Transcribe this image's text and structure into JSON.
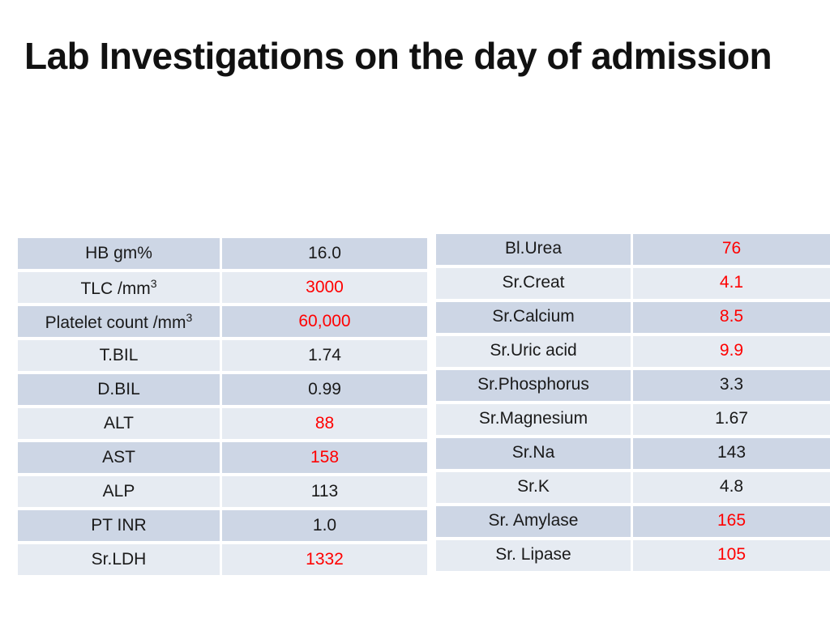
{
  "title": "Lab Investigations on the day of admission",
  "colors": {
    "abnormal": "#ff0000",
    "normal": "#1a1a1a",
    "row_dark": "#cdd6e5",
    "row_light": "#e6ebf2"
  },
  "left_table": [
    {
      "name": "HB  gm%",
      "value": "16.0",
      "abnormal": false
    },
    {
      "name": "TLC   /mm",
      "sup": "3",
      "value": "3000",
      "abnormal": true
    },
    {
      "name": "Platelet count  /mm",
      "sup": "3",
      "value": "60,000",
      "abnormal": true
    },
    {
      "name": "T.BIL",
      "value": "1.74",
      "abnormal": false
    },
    {
      "name": "D.BIL",
      "value": "0.99",
      "abnormal": false
    },
    {
      "name": "ALT",
      "value": "88",
      "abnormal": true
    },
    {
      "name": "AST",
      "value": "158",
      "abnormal": true
    },
    {
      "name": "ALP",
      "value": "113",
      "abnormal": false
    },
    {
      "name": "PT INR",
      "value": "1.0",
      "abnormal": false
    },
    {
      "name": "Sr.LDH",
      "value": "1332",
      "abnormal": true
    }
  ],
  "right_table": [
    {
      "name": "Bl.Urea",
      "value": "76",
      "abnormal": true
    },
    {
      "name": "Sr.Creat",
      "value": "4.1",
      "abnormal": true
    },
    {
      "name": "Sr.Calcium",
      "value": "8.5",
      "abnormal": true
    },
    {
      "name": "Sr.Uric acid",
      "value": "9.9",
      "abnormal": true
    },
    {
      "name": "Sr.Phosphorus",
      "value": "3.3",
      "abnormal": false
    },
    {
      "name": "Sr.Magnesium",
      "value": "1.67",
      "abnormal": false
    },
    {
      "name": "Sr.Na",
      "value": "143",
      "abnormal": false
    },
    {
      "name": "Sr.K",
      "value": "4.8",
      "abnormal": false
    },
    {
      "name": "Sr. Amylase",
      "value": "165",
      "abnormal": true
    },
    {
      "name": "Sr. Lipase",
      "value": "105",
      "abnormal": true
    }
  ]
}
